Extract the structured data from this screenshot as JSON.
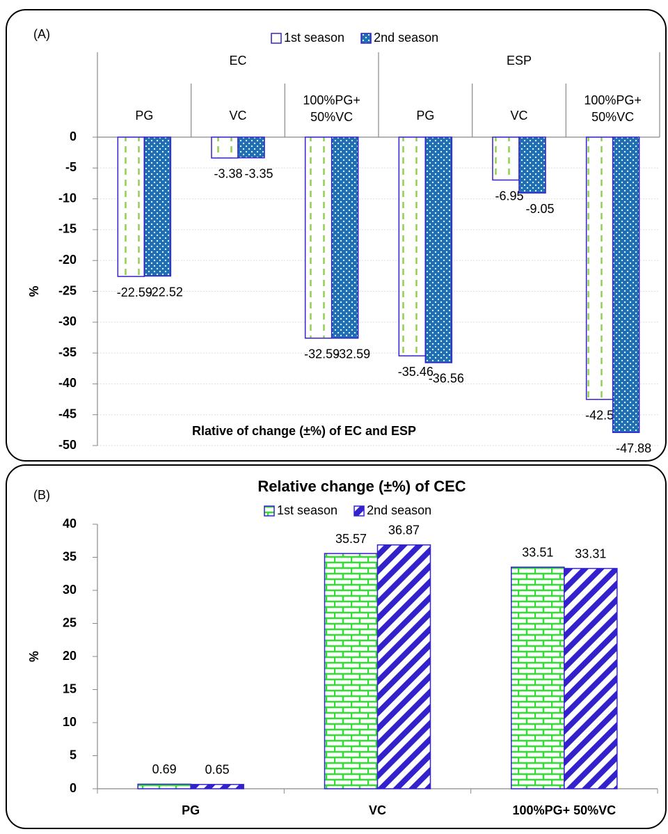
{
  "chart_data": [
    {
      "type": "bar",
      "panel_label": "(A)",
      "annotation": "Rlative of change (±%) of EC and ESP",
      "y_label": "%",
      "groups": [
        "EC",
        "ESP"
      ],
      "categories": [
        "PG",
        "VC",
        "100%PG+ 50%VC",
        "PG",
        "VC",
        "100%PG+ 50%VC"
      ],
      "edge_color": "#3322cc",
      "series": [
        {
          "name": "1st season",
          "color": "#92d050",
          "pattern": "dashes",
          "values": [
            -22.59,
            -3.38,
            -32.59,
            -35.46,
            -6.95,
            -42.52
          ]
        },
        {
          "name": "2nd season",
          "color": "#1f6fb4",
          "pattern": "dots",
          "values": [
            -22.52,
            -3.35,
            -32.59,
            -36.56,
            -9.05,
            -47.88
          ]
        }
      ],
      "ylim": [
        -50,
        0
      ],
      "yticks": [
        0,
        -5,
        -10,
        -15,
        -20,
        -25,
        -30,
        -35,
        -40,
        -45,
        -50
      ],
      "grid": true,
      "x_axis_position": "top"
    },
    {
      "type": "bar",
      "panel_label": "(B)",
      "title": "Relative change (±%) of CEC",
      "y_label": "%",
      "categories": [
        "PG",
        "VC",
        "100%PG+ 50%VC"
      ],
      "edge_color": "#3322cc",
      "series": [
        {
          "name": "1st season",
          "color": "#33dd33",
          "pattern": "bricks",
          "values": [
            0.69,
            35.57,
            33.51
          ]
        },
        {
          "name": "2nd season",
          "color": "#3322cc",
          "pattern": "stripes",
          "values": [
            0.65,
            36.87,
            33.31
          ]
        }
      ],
      "ylim": [
        0,
        40
      ],
      "yticks": [
        0,
        5,
        10,
        15,
        20,
        25,
        30,
        35,
        40
      ],
      "grid": false,
      "x_axis_position": "bottom"
    }
  ]
}
